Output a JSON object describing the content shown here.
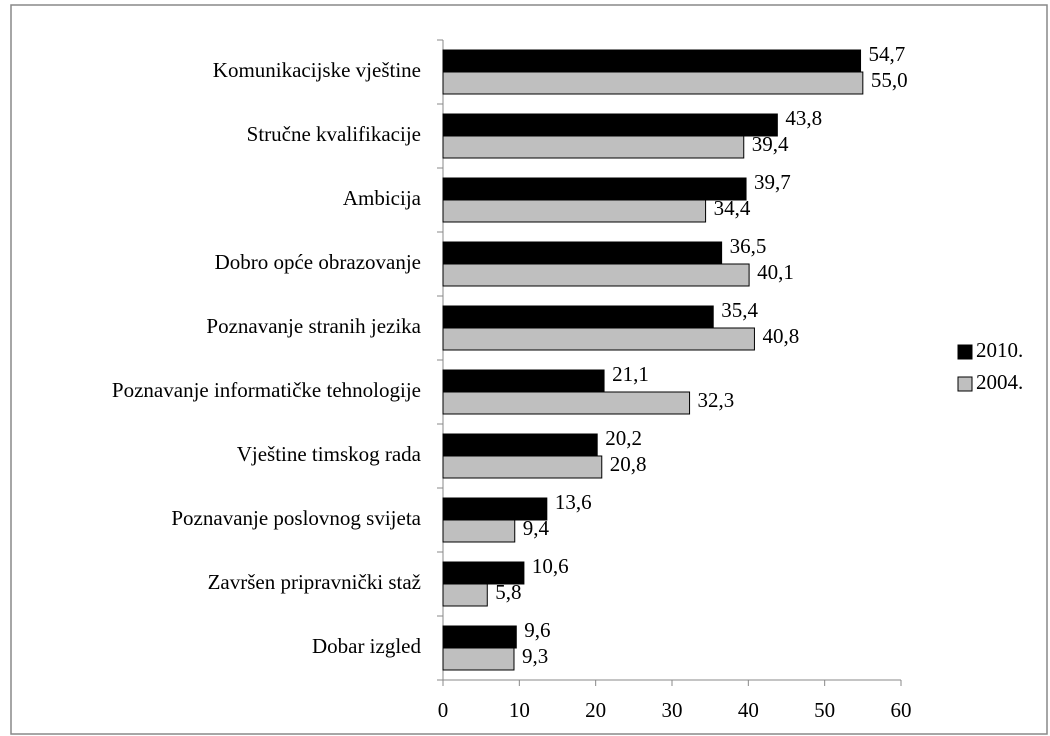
{
  "chart_data": {
    "type": "bar",
    "orientation": "horizontal",
    "categories": [
      "Komunikacijske vještine",
      "Stručne kvalifikacije",
      "Ambicija",
      "Dobro opće obrazovanje",
      "Poznavanje stranih jezika",
      "Poznavanje informatičke tehnologije",
      "Vještine timskog rada",
      "Poznavanje poslovnog svijeta",
      "Završen pripravnički staž",
      "Dobar izgled"
    ],
    "series": [
      {
        "name": "2010.",
        "color": "#000000",
        "values": [
          54.7,
          43.8,
          39.7,
          36.5,
          35.4,
          21.1,
          20.2,
          13.6,
          10.6,
          9.6
        ],
        "value_labels": [
          "54,7",
          "43,8",
          "39,7",
          "36,5",
          "35,4",
          "21,1",
          "20,2",
          "13,6",
          "10,6",
          "9,6"
        ]
      },
      {
        "name": "2004.",
        "color": "#bfbfbf",
        "values": [
          55.0,
          39.4,
          34.4,
          40.1,
          40.8,
          32.3,
          20.8,
          9.4,
          5.8,
          9.3
        ],
        "value_labels": [
          "55,0",
          "39,4",
          "34,4",
          "40,1",
          "40,8",
          "32,3",
          "20,8",
          "9,4",
          "5,8",
          "9,3"
        ]
      }
    ],
    "xlim": [
      0,
      60
    ],
    "xticks": [
      0,
      10,
      20,
      30,
      40,
      50,
      60
    ],
    "legend": "right"
  }
}
